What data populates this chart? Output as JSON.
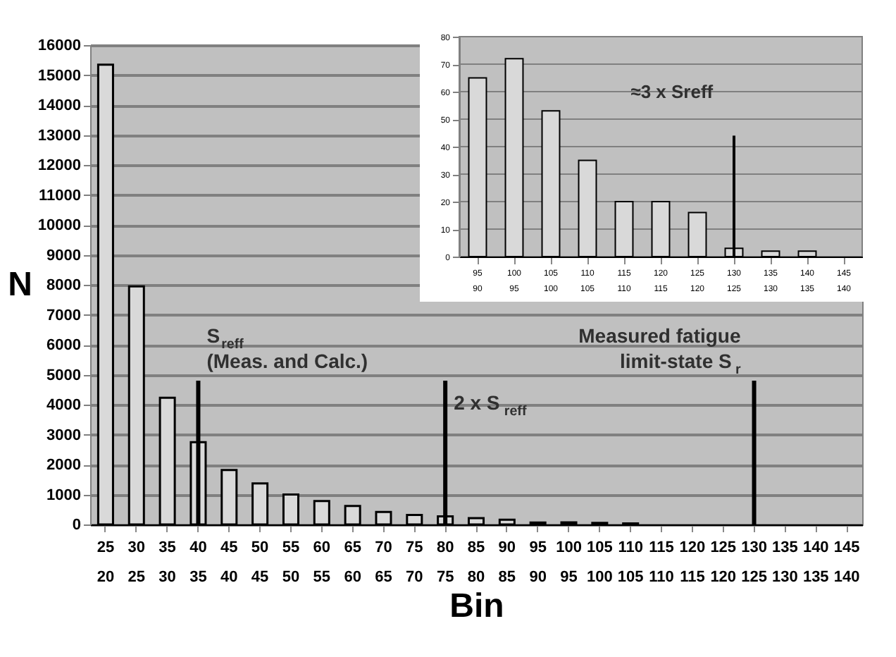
{
  "chart_data": [
    {
      "type": "bar",
      "xlabel": "Bin",
      "ylabel": "N",
      "categories": [
        "25\n20",
        "30\n25",
        "35\n30",
        "40\n35",
        "45\n40",
        "50\n45",
        "55\n50",
        "60\n55",
        "65\n60",
        "70\n65",
        "75\n70",
        "80\n75",
        "85\n80",
        "90\n85",
        "95\n90",
        "100\n95",
        "105\n100",
        "110\n105",
        "115\n110",
        "120\n115",
        "125\n120",
        "130\n125",
        "135\n130",
        "140\n135",
        "145\n140"
      ],
      "values": [
        15350,
        7950,
        4230,
        2750,
        1820,
        1370,
        1000,
        780,
        620,
        420,
        320,
        270,
        210,
        160,
        65,
        72,
        53,
        35,
        null,
        null,
        null,
        null,
        null,
        null,
        null
      ],
      "color": "#d9d9d9",
      "ylim": [
        0,
        16000
      ],
      "yticks": [
        0,
        1000,
        2000,
        3000,
        4000,
        5000,
        6000,
        7000,
        8000,
        9000,
        10000,
        11000,
        12000,
        13000,
        14000,
        15000,
        16000
      ],
      "grid": "y",
      "ref_lines": [
        {
          "axis": "x",
          "value": "40\n35",
          "label": "S$_{reff}$ (Meas. and Calc.)",
          "color": "#000000"
        },
        {
          "axis": "x",
          "value": "80\n75",
          "label": "2 x S$_{reff}$",
          "color": "#000000"
        },
        {
          "axis": "x",
          "value": "130\n125",
          "label": "Measured fatigue limit-state S$_{r}$",
          "color": "#000000"
        }
      ]
    },
    {
      "type": "bar",
      "categories": [
        "95\n90",
        "100\n95",
        "105\n100",
        "110\n105",
        "115\n110",
        "120\n115",
        "125\n120",
        "130\n125",
        "135\n130",
        "140\n135",
        "145\n140"
      ],
      "values": [
        65,
        72,
        53,
        35,
        20,
        20,
        16,
        3,
        2,
        2,
        null
      ],
      "color": "#d9d9d9",
      "ylim": [
        0,
        80
      ],
      "yticks": [
        0,
        10,
        20,
        30,
        40,
        50,
        60,
        70,
        80
      ],
      "grid": "y",
      "ref_lines": [
        {
          "axis": "x",
          "value": "130\n125",
          "label": "≈3 x Sreff",
          "color": "#000000"
        }
      ]
    }
  ]
}
